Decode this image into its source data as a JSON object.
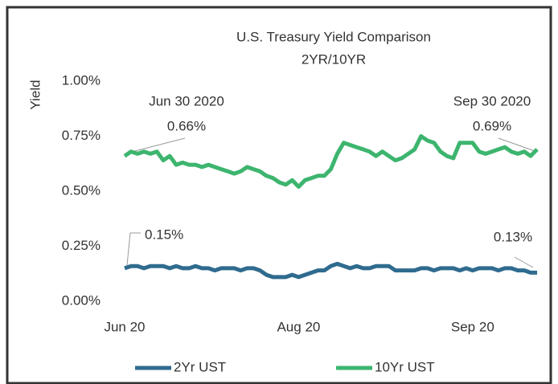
{
  "chart_data": {
    "type": "line",
    "title": "U.S. Treasury Yield Comparison",
    "subtitle": "2YR/10YR",
    "y_label": "Yield",
    "categories": [
      "Jun 20",
      null,
      null,
      null,
      null,
      null,
      null,
      null,
      null,
      null,
      null,
      null,
      null,
      null,
      null,
      null,
      null,
      null,
      null,
      null,
      null,
      null,
      null,
      null,
      null,
      null,
      null,
      "Aug 20",
      null,
      null,
      null,
      null,
      null,
      null,
      null,
      null,
      null,
      null,
      null,
      null,
      null,
      null,
      null,
      null,
      null,
      null,
      null,
      null,
      null,
      null,
      null,
      null,
      null,
      null,
      "Sep 20",
      null,
      null,
      null,
      null,
      null,
      null,
      null,
      null,
      null,
      null
    ],
    "series": [
      {
        "name": "2Yr UST",
        "color": "#2f6b8e",
        "values": [
          0.15,
          0.16,
          0.16,
          0.15,
          0.16,
          0.16,
          0.16,
          0.15,
          0.16,
          0.15,
          0.15,
          0.16,
          0.15,
          0.15,
          0.14,
          0.15,
          0.15,
          0.15,
          0.14,
          0.15,
          0.15,
          0.14,
          0.12,
          0.11,
          0.11,
          0.11,
          0.12,
          0.11,
          0.12,
          0.13,
          0.14,
          0.14,
          0.16,
          0.17,
          0.16,
          0.15,
          0.16,
          0.15,
          0.15,
          0.16,
          0.16,
          0.16,
          0.14,
          0.14,
          0.14,
          0.14,
          0.15,
          0.15,
          0.14,
          0.15,
          0.15,
          0.15,
          0.14,
          0.15,
          0.14,
          0.15,
          0.15,
          0.15,
          0.14,
          0.15,
          0.15,
          0.14,
          0.14,
          0.13,
          0.13
        ]
      },
      {
        "name": "10Yr UST",
        "color": "#3db56f",
        "values": [
          0.66,
          0.68,
          0.67,
          0.68,
          0.67,
          0.68,
          0.64,
          0.66,
          0.62,
          0.63,
          0.62,
          0.62,
          0.61,
          0.62,
          0.61,
          0.6,
          0.59,
          0.58,
          0.59,
          0.61,
          0.6,
          0.59,
          0.57,
          0.56,
          0.54,
          0.53,
          0.55,
          0.52,
          0.55,
          0.56,
          0.57,
          0.57,
          0.6,
          0.67,
          0.72,
          0.71,
          0.7,
          0.69,
          0.68,
          0.66,
          0.68,
          0.66,
          0.64,
          0.65,
          0.67,
          0.69,
          0.75,
          0.73,
          0.72,
          0.68,
          0.66,
          0.65,
          0.72,
          0.72,
          0.72,
          0.68,
          0.67,
          0.68,
          0.69,
          0.7,
          0.68,
          0.67,
          0.68,
          0.66,
          0.69
        ]
      }
    ],
    "ylim": [
      0,
      1
    ],
    "yticks": [
      {
        "value": 0,
        "label": "0.00%"
      },
      {
        "value": 0.25,
        "label": "0.25%"
      },
      {
        "value": 0.5,
        "label": "0.50%"
      },
      {
        "value": 0.75,
        "label": "0.75%"
      },
      {
        "value": 1,
        "label": "1.00%"
      }
    ],
    "grid": false,
    "legend": "bottom",
    "annotations": [
      "Jun 30 2020",
      "0.66%",
      "Sep 30 2020",
      "0.69%",
      "0.15%",
      "0.13%"
    ]
  }
}
